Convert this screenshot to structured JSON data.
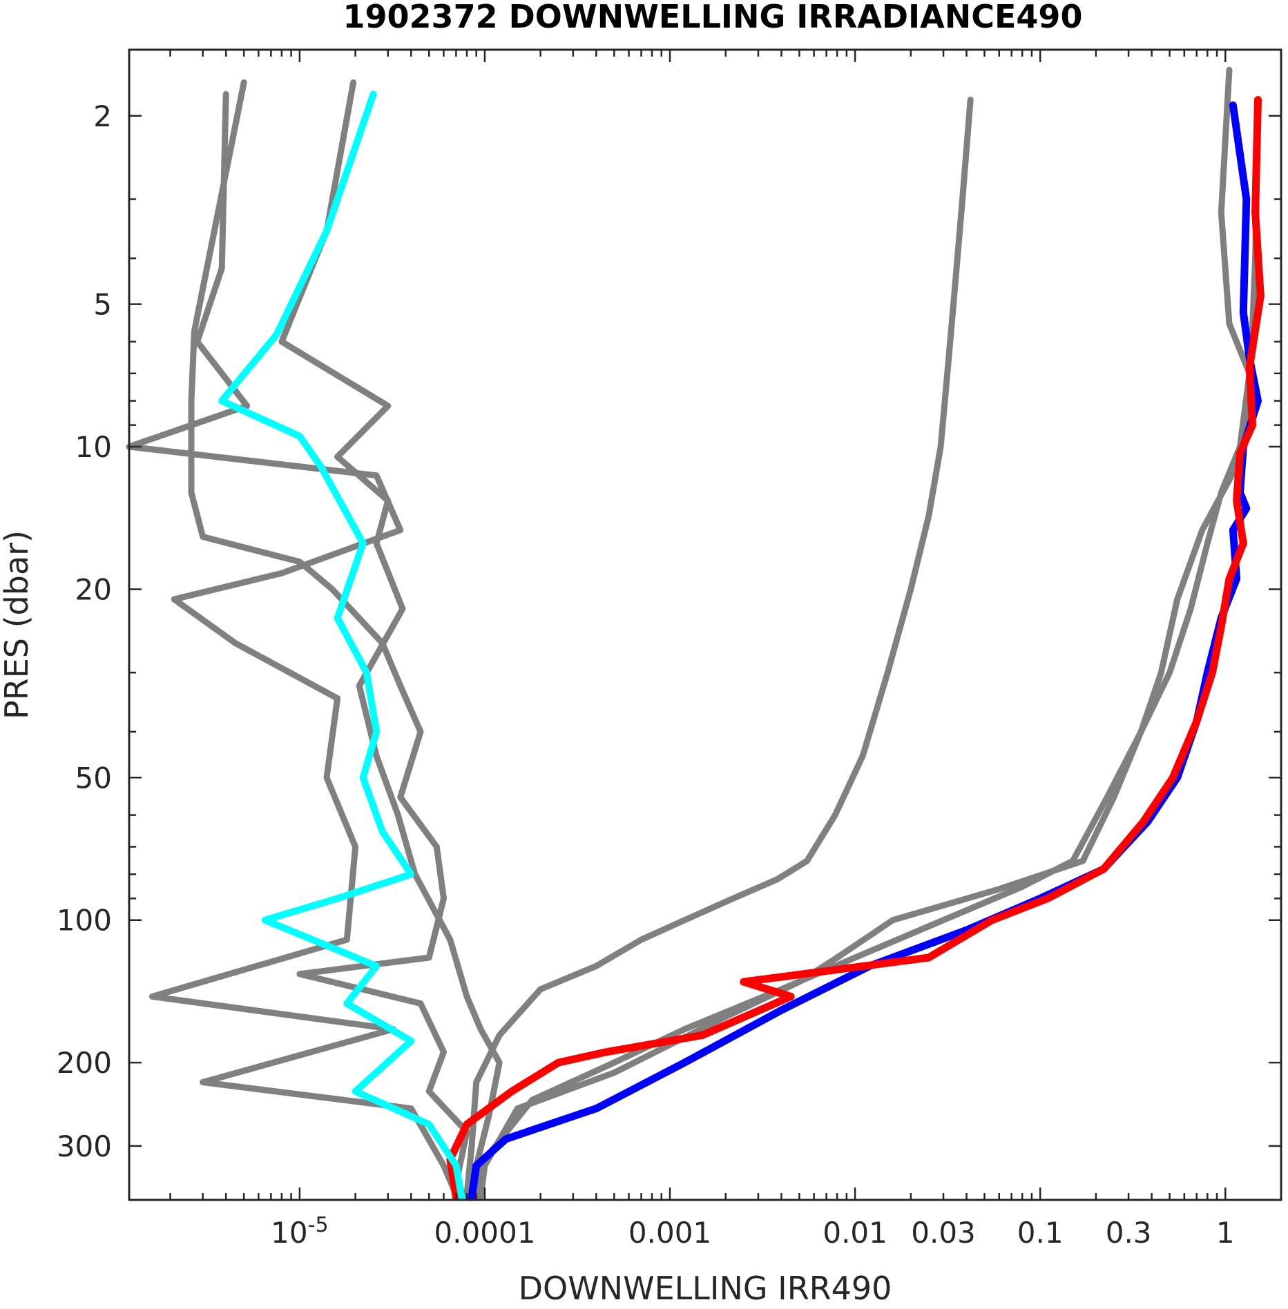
{
  "chart_data": {
    "type": "line",
    "title": "1902372  DOWNWELLING IRRADIANCE490",
    "xlabel": "DOWNWELLING IRR490",
    "ylabel": "PRES (dbar)",
    "xscale": "log",
    "yscale": "log",
    "y_reversed": true,
    "xlim": [
      1.2e-06,
      2.0
    ],
    "ylim": [
      1.45,
      390
    ],
    "grid": false,
    "x_ticks": [
      {
        "value": 1e-05,
        "label": "10",
        "sup": "-5"
      },
      {
        "value": 0.0001,
        "label": "0.0001"
      },
      {
        "value": 0.001,
        "label": "0.001"
      },
      {
        "value": 0.01,
        "label": "0.01"
      },
      {
        "value": 0.03,
        "label": "0.03"
      },
      {
        "value": 0.1,
        "label": "0.1"
      },
      {
        "value": 0.3,
        "label": "0.3"
      },
      {
        "value": 1,
        "label": "1"
      }
    ],
    "y_ticks": [
      {
        "value": 2,
        "label": "2"
      },
      {
        "value": 5,
        "label": "5"
      },
      {
        "value": 10,
        "label": "10"
      },
      {
        "value": 20,
        "label": "20"
      },
      {
        "value": 50,
        "label": "50"
      },
      {
        "value": 100,
        "label": "100"
      },
      {
        "value": 200,
        "label": "200"
      },
      {
        "value": 300,
        "label": "300"
      }
    ],
    "series": [
      {
        "color": "#808080",
        "width": 9,
        "points": [
          [
            4e-06,
            1.8
          ],
          [
            3.8e-06,
            4.2
          ],
          [
            2.8e-06,
            6
          ],
          [
            5.2e-06,
            8.2
          ],
          [
            1.2e-06,
            10
          ],
          [
            2.6e-05,
            11.5
          ],
          [
            3.5e-05,
            15
          ],
          [
            8e-06,
            18.5
          ],
          [
            2.1e-06,
            21
          ],
          [
            4.5e-06,
            26
          ],
          [
            1.6e-05,
            34
          ],
          [
            1.4e-05,
            50
          ],
          [
            2e-05,
            70
          ],
          [
            1.8e-05,
            110
          ],
          [
            1.6e-06,
            145
          ],
          [
            3.2e-05,
            170
          ],
          [
            3e-06,
            220
          ],
          [
            4e-05,
            250
          ],
          [
            6e-05,
            330
          ],
          [
            7e-05,
            380
          ]
        ]
      },
      {
        "color": "#808080",
        "width": 9,
        "points": [
          [
            5e-06,
            1.7
          ],
          [
            2.7e-06,
            5.7
          ],
          [
            2.6e-06,
            8
          ],
          [
            2.6e-06,
            12.5
          ],
          [
            3e-06,
            15.5
          ],
          [
            1e-05,
            17.5
          ],
          [
            1.5e-05,
            20
          ],
          [
            2.8e-05,
            26
          ],
          [
            3.5e-05,
            32
          ],
          [
            4.5e-05,
            40
          ],
          [
            3.5e-05,
            55
          ],
          [
            5.5e-05,
            70
          ],
          [
            6e-05,
            90
          ],
          [
            5e-05,
            120
          ],
          [
            1e-05,
            130
          ],
          [
            4.5e-05,
            150
          ],
          [
            6e-05,
            190
          ],
          [
            5e-05,
            230
          ],
          [
            8e-05,
            280
          ],
          [
            7e-05,
            360
          ],
          [
            8e-05,
            385
          ]
        ]
      },
      {
        "color": "#808080",
        "width": 9,
        "points": [
          [
            1.95e-05,
            1.7
          ],
          [
            1.4e-05,
            3.5
          ],
          [
            8e-06,
            6
          ],
          [
            3e-05,
            8.2
          ],
          [
            1.6e-05,
            10.5
          ],
          [
            3e-05,
            13
          ],
          [
            2.6e-05,
            16
          ],
          [
            3.6e-05,
            22
          ],
          [
            2.1e-05,
            32
          ],
          [
            2.6e-05,
            45
          ],
          [
            3.4e-05,
            60
          ],
          [
            4.2e-05,
            80
          ],
          [
            6.5e-05,
            110
          ],
          [
            8e-05,
            145
          ],
          [
            9.5e-05,
            170
          ],
          [
            0.00012,
            200
          ],
          [
            0.000105,
            260
          ],
          [
            9e-05,
            330
          ],
          [
            8.5e-05,
            385
          ]
        ]
      },
      {
        "color": "#808080",
        "width": 9,
        "points": [
          [
            0.042,
            1.85
          ],
          [
            0.038,
            3
          ],
          [
            0.034,
            5
          ],
          [
            0.031,
            7.5
          ],
          [
            0.029,
            10
          ],
          [
            0.025,
            14
          ],
          [
            0.02,
            20
          ],
          [
            0.015,
            30
          ],
          [
            0.011,
            45
          ],
          [
            0.0078,
            60
          ],
          [
            0.0055,
            75
          ],
          [
            0.0038,
            82
          ],
          [
            0.0022,
            90
          ],
          [
            0.0012,
            100
          ],
          [
            0.0007,
            110
          ],
          [
            0.0004,
            125
          ],
          [
            0.0002,
            140
          ],
          [
            0.00012,
            175
          ],
          [
            9e-05,
            220
          ],
          [
            8.5e-05,
            300
          ],
          [
            8e-05,
            380
          ]
        ]
      },
      {
        "color": "#808080",
        "width": 9,
        "points": [
          [
            1.05,
            1.6
          ],
          [
            0.95,
            3.2
          ],
          [
            1.05,
            5.5
          ],
          [
            1.35,
            7
          ],
          [
            1.2,
            10
          ],
          [
            0.95,
            12.5
          ],
          [
            0.8,
            16
          ],
          [
            0.65,
            22
          ],
          [
            0.5,
            30
          ],
          [
            0.35,
            40
          ],
          [
            0.25,
            55
          ],
          [
            0.17,
            75
          ],
          [
            0.06,
            86
          ],
          [
            0.016,
            100
          ],
          [
            0.008,
            120
          ],
          [
            0.005,
            135
          ],
          [
            0.002,
            160
          ],
          [
            0.0005,
            210
          ],
          [
            0.00015,
            250
          ],
          [
            0.0001,
            330
          ],
          [
            9.5e-05,
            385
          ]
        ]
      },
      {
        "color": "#808080",
        "width": 9,
        "points": [
          [
            1.5,
            1.9
          ],
          [
            1.45,
            4
          ],
          [
            1.35,
            8
          ],
          [
            1.15,
            11
          ],
          [
            0.75,
            15
          ],
          [
            0.55,
            21
          ],
          [
            0.45,
            30
          ],
          [
            0.35,
            40
          ],
          [
            0.23,
            55
          ],
          [
            0.15,
            75
          ],
          [
            0.08,
            85
          ],
          [
            0.03,
            100
          ],
          [
            0.01,
            120
          ],
          [
            0.004,
            140
          ],
          [
            0.0012,
            170
          ],
          [
            0.0005,
            200
          ],
          [
            0.00018,
            240
          ],
          [
            0.0001,
            320
          ],
          [
            9e-05,
            385
          ]
        ]
      },
      {
        "color": "#0000ff",
        "width": 11,
        "points": [
          [
            1.1,
            1.9
          ],
          [
            1.3,
            3
          ],
          [
            1.25,
            5.2
          ],
          [
            1.35,
            6.5
          ],
          [
            1.5,
            8
          ],
          [
            1.25,
            10
          ],
          [
            1.2,
            12.5
          ],
          [
            1.3,
            13.5
          ],
          [
            1.1,
            15
          ],
          [
            1.15,
            19
          ],
          [
            0.95,
            23
          ],
          [
            0.8,
            30
          ],
          [
            0.7,
            38
          ],
          [
            0.55,
            50
          ],
          [
            0.38,
            62
          ],
          [
            0.22,
            78
          ],
          [
            0.1,
            90
          ],
          [
            0.04,
            105
          ],
          [
            0.012,
            125
          ],
          [
            0.004,
            155
          ],
          [
            0.0012,
            200
          ],
          [
            0.0004,
            250
          ],
          [
            0.00013,
            290
          ],
          [
            9e-05,
            330
          ],
          [
            8.5e-05,
            385
          ]
        ]
      },
      {
        "color": "#ff0000",
        "width": 11,
        "points": [
          [
            1.5,
            1.85
          ],
          [
            1.45,
            3.2
          ],
          [
            1.55,
            4.8
          ],
          [
            1.35,
            6.8
          ],
          [
            1.4,
            9
          ],
          [
            1.2,
            10.3
          ],
          [
            1.15,
            13
          ],
          [
            1.25,
            16
          ],
          [
            1.05,
            19
          ],
          [
            0.95,
            24
          ],
          [
            0.85,
            30
          ],
          [
            0.7,
            38
          ],
          [
            0.52,
            50
          ],
          [
            0.36,
            62
          ],
          [
            0.22,
            78
          ],
          [
            0.11,
            90
          ],
          [
            0.055,
            100
          ],
          [
            0.025,
            120
          ],
          [
            0.0025,
            135
          ],
          [
            0.0045,
            145
          ],
          [
            0.0015,
            175
          ],
          [
            0.00045,
            190
          ],
          [
            0.00025,
            200
          ],
          [
            0.00014,
            230
          ],
          [
            8e-05,
            270
          ],
          [
            6.5e-05,
            320
          ],
          [
            7e-05,
            385
          ]
        ]
      },
      {
        "color": "#00ffff",
        "width": 10,
        "points": [
          [
            2.5e-05,
            1.8
          ],
          [
            1.4e-05,
            3.5
          ],
          [
            7.5e-06,
            5.8
          ],
          [
            3.8e-06,
            8
          ],
          [
            1e-05,
            9.5
          ],
          [
            1.3e-05,
            11
          ],
          [
            2.2e-05,
            16
          ],
          [
            1.6e-05,
            23
          ],
          [
            2.3e-05,
            30
          ],
          [
            2.6e-05,
            40
          ],
          [
            2.2e-05,
            50
          ],
          [
            2.8e-05,
            65
          ],
          [
            4e-05,
            80
          ],
          [
            1.6e-05,
            90
          ],
          [
            6.5e-06,
            100
          ],
          [
            2.6e-05,
            125
          ],
          [
            1.8e-05,
            150
          ],
          [
            4e-05,
            180
          ],
          [
            2e-05,
            230
          ],
          [
            5e-05,
            270
          ],
          [
            7e-05,
            330
          ],
          [
            7.5e-05,
            385
          ]
        ]
      }
    ]
  }
}
